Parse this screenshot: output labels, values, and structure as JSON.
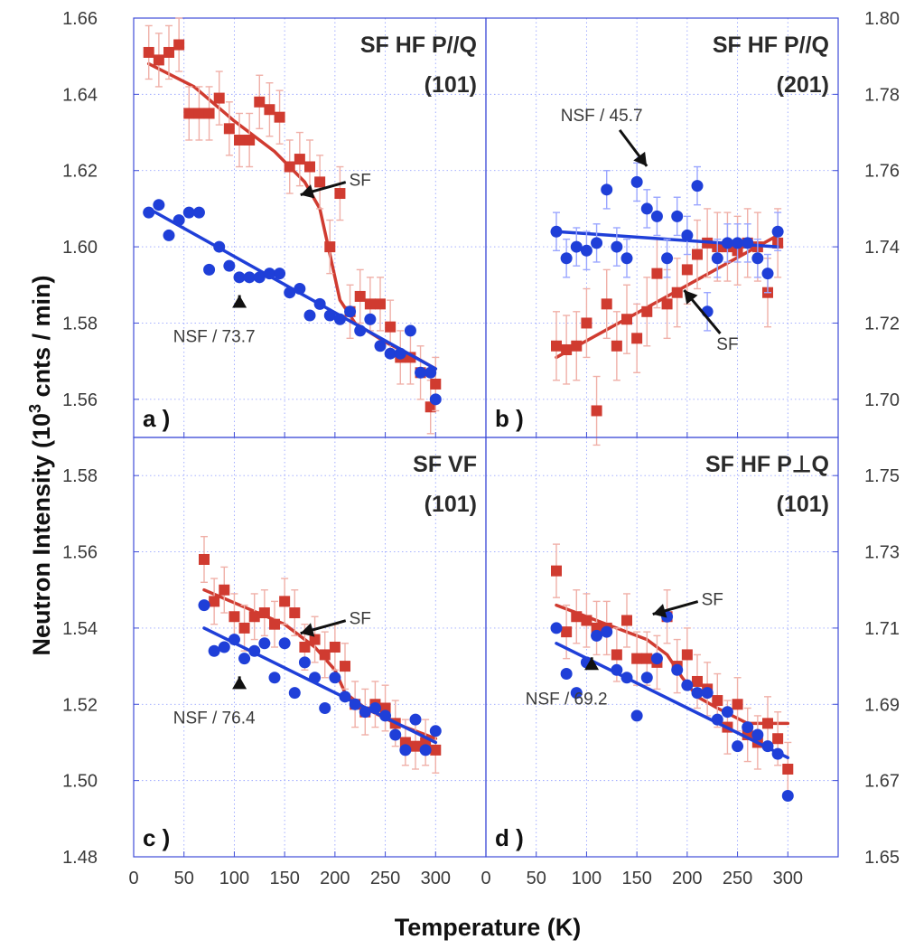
{
  "figure": {
    "xlabel": "Temperature (K)",
    "ylabel_text": "Neutron Intensity (10",
    "ylabel_exp": "3",
    "ylabel_tail": " cnts / min)"
  },
  "colors": {
    "sf": "#d03b30",
    "nsf": "#1f3fd8",
    "errorbar": "#f0b0a8",
    "frame": "#3f4dd8",
    "grid": "#9aa6ff"
  },
  "chart_data": [
    {
      "type": "scatter",
      "panel_label": "a )",
      "title_lines": [
        "SF HF  P//Q",
        "(101)"
      ],
      "x_ticks": [
        0,
        50,
        100,
        150,
        200,
        250,
        300
      ],
      "xlim": [
        0,
        350
      ],
      "ylim": [
        1.55,
        1.66
      ],
      "y_ticks": [
        1.56,
        1.58,
        1.6,
        1.62,
        1.64,
        1.66
      ],
      "y_axis_side": "left",
      "grid": true,
      "annotations": [
        {
          "text": "SF",
          "pointer": "sf",
          "x": 225,
          "y": 1.616
        },
        {
          "text": "NSF / 73.7",
          "pointer": "nsf",
          "x": 80,
          "y": 1.575
        }
      ],
      "series": [
        {
          "key": "sf",
          "x": [
            15,
            25,
            35,
            45,
            55,
            65,
            75,
            85,
            95,
            105,
            115,
            125,
            135,
            145,
            155,
            165,
            175,
            185,
            195,
            205,
            215,
            225,
            235,
            245,
            255,
            265,
            275,
            285,
            295,
            300
          ],
          "y": [
            1.651,
            1.649,
            1.651,
            1.653,
            1.635,
            1.635,
            1.635,
            1.639,
            1.631,
            1.628,
            1.628,
            1.638,
            1.636,
            1.634,
            1.621,
            1.623,
            1.621,
            1.617,
            1.6,
            1.614,
            1.583,
            1.587,
            1.585,
            1.585,
            1.579,
            1.571,
            1.571,
            1.567,
            1.558,
            1.564
          ],
          "err": 0.007,
          "fit": {
            "x": [
              15,
              60,
              100,
              140,
              170,
              185,
              195,
              205,
              220,
              250,
              280,
              300
            ],
            "y": [
              1.648,
              1.642,
              1.633,
              1.625,
              1.617,
              1.61,
              1.598,
              1.586,
              1.58,
              1.575,
              1.571,
              1.568
            ]
          }
        },
        {
          "key": "nsf",
          "x": [
            15,
            25,
            35,
            45,
            55,
            65,
            75,
            85,
            95,
            105,
            115,
            125,
            135,
            145,
            155,
            165,
            175,
            185,
            195,
            205,
            215,
            225,
            235,
            245,
            255,
            265,
            275,
            285,
            295,
            300
          ],
          "y": [
            1.609,
            1.611,
            1.603,
            1.607,
            1.609,
            1.609,
            1.594,
            1.6,
            1.595,
            1.592,
            1.592,
            1.592,
            1.593,
            1.593,
            1.588,
            1.589,
            1.582,
            1.585,
            1.582,
            1.581,
            1.583,
            1.578,
            1.581,
            1.574,
            1.572,
            1.572,
            1.578,
            1.567,
            1.567,
            1.56
          ],
          "err": 0,
          "fit": {
            "x": [
              15,
              300
            ],
            "y": [
              1.61,
              1.568
            ]
          }
        }
      ]
    },
    {
      "type": "scatter",
      "panel_label": "b )",
      "title_lines": [
        "SF HF P//Q",
        "(201)"
      ],
      "x_ticks": [
        0,
        50,
        100,
        150,
        200,
        250,
        300
      ],
      "xlim": [
        0,
        350
      ],
      "ylim": [
        1.69,
        1.8
      ],
      "y_ticks": [
        1.7,
        1.72,
        1.74,
        1.76,
        1.78,
        1.8
      ],
      "y_axis_side": "right",
      "grid": true,
      "annotations": [
        {
          "text": "NSF / 45.7",
          "pointer": "nsf",
          "x": 115,
          "y": 1.773
        },
        {
          "text": "SF",
          "pointer": "sf",
          "x": 240,
          "y": 1.713
        }
      ],
      "series": [
        {
          "key": "sf",
          "x": [
            70,
            80,
            90,
            100,
            110,
            120,
            130,
            140,
            150,
            160,
            170,
            180,
            190,
            200,
            210,
            220,
            230,
            240,
            250,
            260,
            270,
            280,
            290
          ],
          "y": [
            1.714,
            1.713,
            1.714,
            1.72,
            1.697,
            1.725,
            1.714,
            1.721,
            1.716,
            1.723,
            1.733,
            1.725,
            1.728,
            1.734,
            1.738,
            1.741,
            1.74,
            1.74,
            1.739,
            1.741,
            1.74,
            1.728,
            1.741
          ],
          "err": 0.009,
          "fit": {
            "x": [
              70,
              290
            ],
            "y": [
              1.711,
              1.743
            ]
          }
        },
        {
          "key": "nsf",
          "x": [
            70,
            80,
            90,
            100,
            110,
            120,
            130,
            140,
            150,
            160,
            170,
            180,
            190,
            200,
            210,
            220,
            230,
            240,
            250,
            260,
            270,
            280,
            290
          ],
          "y": [
            1.744,
            1.737,
            1.74,
            1.739,
            1.741,
            1.755,
            1.74,
            1.737,
            1.757,
            1.75,
            1.748,
            1.737,
            1.748,
            1.743,
            1.756,
            1.723,
            1.737,
            1.741,
            1.741,
            1.741,
            1.737,
            1.733,
            1.744
          ],
          "err": 0.005,
          "fit": {
            "x": [
              70,
              290
            ],
            "y": [
              1.744,
              1.74
            ]
          }
        }
      ]
    },
    {
      "type": "scatter",
      "panel_label": "c )",
      "title_lines": [
        "SF VF",
        "(101)"
      ],
      "x_ticks": [
        0,
        50,
        100,
        150,
        200,
        250,
        300
      ],
      "xlim": [
        0,
        350
      ],
      "ylim": [
        1.48,
        1.59
      ],
      "y_ticks": [
        1.48,
        1.5,
        1.52,
        1.54,
        1.56,
        1.58
      ],
      "y_axis_side": "left",
      "grid": true,
      "annotations": [
        {
          "text": "SF",
          "pointer": "sf",
          "x": 225,
          "y": 1.541
        },
        {
          "text": "NSF / 76.4",
          "pointer": "nsf",
          "x": 80,
          "y": 1.515
        }
      ],
      "series": [
        {
          "key": "sf",
          "x": [
            70,
            80,
            90,
            100,
            110,
            120,
            130,
            140,
            150,
            160,
            170,
            180,
            190,
            200,
            210,
            220,
            230,
            240,
            250,
            260,
            270,
            280,
            290,
            300
          ],
          "y": [
            1.558,
            1.547,
            1.55,
            1.543,
            1.54,
            1.543,
            1.544,
            1.541,
            1.547,
            1.544,
            1.535,
            1.537,
            1.533,
            1.535,
            1.53,
            1.52,
            1.518,
            1.52,
            1.519,
            1.515,
            1.51,
            1.509,
            1.51,
            1.508
          ],
          "err": 0.006,
          "fit": {
            "x": [
              70,
              150,
              180,
              200,
              210,
              230,
              260,
              300
            ],
            "y": [
              1.55,
              1.541,
              1.535,
              1.529,
              1.523,
              1.519,
              1.515,
              1.511
            ]
          }
        },
        {
          "key": "nsf",
          "x": [
            70,
            80,
            90,
            100,
            110,
            120,
            130,
            140,
            150,
            160,
            170,
            180,
            190,
            200,
            210,
            220,
            230,
            240,
            250,
            260,
            270,
            280,
            290,
            300
          ],
          "y": [
            1.546,
            1.534,
            1.535,
            1.537,
            1.532,
            1.534,
            1.536,
            1.527,
            1.536,
            1.523,
            1.531,
            1.527,
            1.519,
            1.527,
            1.522,
            1.52,
            1.518,
            1.519,
            1.517,
            1.512,
            1.508,
            1.516,
            1.508,
            1.513
          ],
          "err": 0,
          "fit": {
            "x": [
              70,
              300
            ],
            "y": [
              1.54,
              1.51
            ]
          }
        }
      ]
    },
    {
      "type": "scatter",
      "panel_label": "d )",
      "title_lines": [
        "SF HF P⊥Q",
        "(101)"
      ],
      "x_ticks": [
        0,
        50,
        100,
        150,
        200,
        250,
        300
      ],
      "xlim": [
        0,
        350
      ],
      "ylim": [
        1.65,
        1.76
      ],
      "y_ticks": [
        1.65,
        1.67,
        1.69,
        1.71,
        1.73,
        1.75
      ],
      "y_axis_side": "right",
      "grid": true,
      "annotations": [
        {
          "text": "SF",
          "pointer": "sf",
          "x": 225,
          "y": 1.716
        },
        {
          "text": "NSF / 69.2",
          "pointer": "nsf",
          "x": 80,
          "y": 1.69
        }
      ],
      "series": [
        {
          "key": "sf",
          "x": [
            70,
            80,
            90,
            100,
            110,
            120,
            130,
            140,
            150,
            160,
            170,
            180,
            190,
            200,
            210,
            220,
            230,
            240,
            250,
            260,
            270,
            280,
            290,
            300
          ],
          "y": [
            1.725,
            1.709,
            1.713,
            1.712,
            1.71,
            1.71,
            1.703,
            1.712,
            1.702,
            1.702,
            1.701,
            1.713,
            1.7,
            1.703,
            1.696,
            1.694,
            1.691,
            1.684,
            1.69,
            1.682,
            1.68,
            1.685,
            1.681,
            1.673
          ],
          "err": 0.007,
          "fit": {
            "x": [
              70,
              120,
              160,
              180,
              195,
              210,
              230,
              260,
              300
            ],
            "y": [
              1.716,
              1.711,
              1.707,
              1.703,
              1.697,
              1.692,
              1.689,
              1.685,
              1.685
            ]
          }
        },
        {
          "key": "nsf",
          "x": [
            70,
            80,
            90,
            100,
            110,
            120,
            130,
            140,
            150,
            160,
            170,
            180,
            190,
            200,
            210,
            220,
            230,
            240,
            250,
            260,
            270,
            280,
            290,
            300
          ],
          "y": [
            1.71,
            1.698,
            1.693,
            1.701,
            1.708,
            1.709,
            1.699,
            1.697,
            1.687,
            1.697,
            1.702,
            1.713,
            1.699,
            1.695,
            1.693,
            1.693,
            1.686,
            1.688,
            1.679,
            1.684,
            1.682,
            1.679,
            1.677,
            1.666
          ],
          "err": 0,
          "fit": {
            "x": [
              70,
              300
            ],
            "y": [
              1.706,
              1.676
            ]
          }
        }
      ]
    }
  ]
}
